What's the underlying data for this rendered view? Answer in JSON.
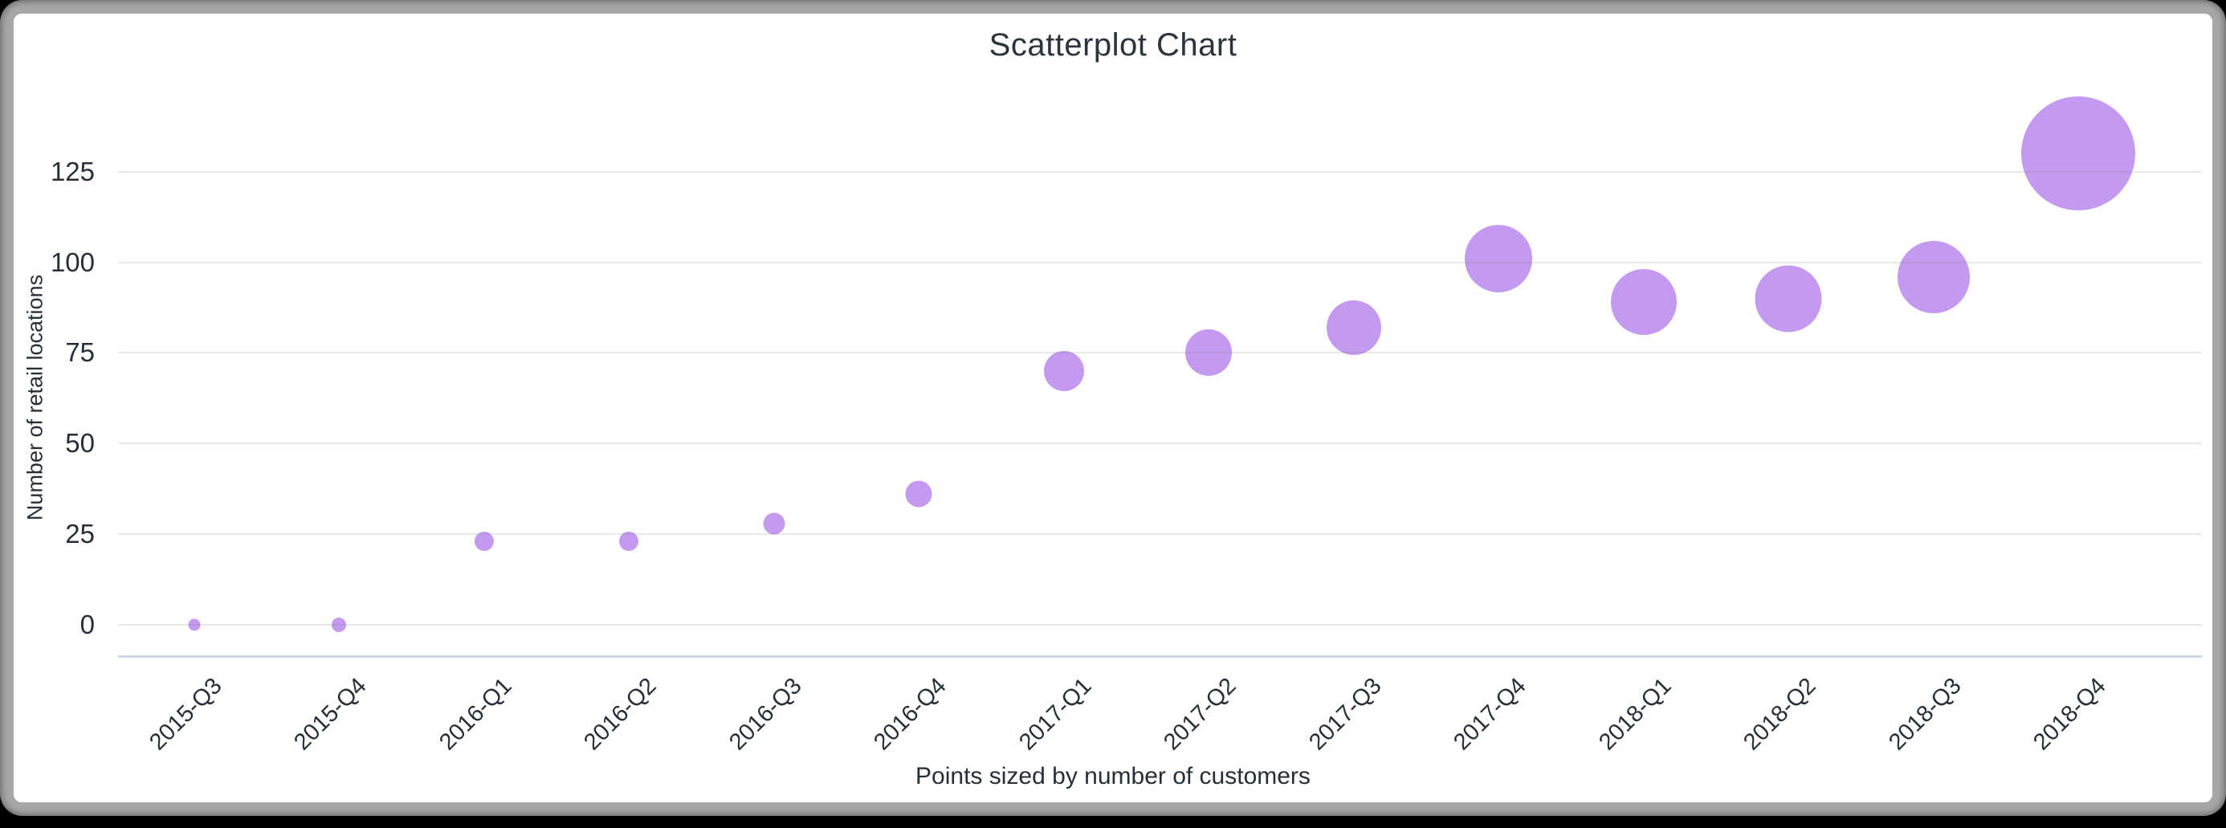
{
  "window": {
    "background_color": "#000000",
    "frame_color": "#a7a7a7",
    "card_color": "#ffffff"
  },
  "chart_data": {
    "type": "scatter",
    "title": "Scatterplot Chart",
    "subtitle": "",
    "xlabel": "",
    "ylabel": "Number of retail locations",
    "caption": "Points sized by number of customers",
    "size_encoding": "number of customers",
    "legend": "none",
    "grid": "horizontal gridlines only",
    "categories": [
      "2015-Q3",
      "2015-Q4",
      "2016-Q1",
      "2016-Q2",
      "2016-Q3",
      "2016-Q4",
      "2017-Q1",
      "2017-Q2",
      "2017-Q3",
      "2017-Q4",
      "2018-Q1",
      "2018-Q2",
      "2018-Q3",
      "2018-Q4"
    ],
    "series": [
      {
        "name": "Number of retail locations",
        "values": [
          0,
          0,
          23,
          23,
          28,
          36,
          70,
          75,
          82,
          101,
          89,
          90,
          96,
          130
        ],
        "point_radius_px": [
          7.5,
          9,
          12,
          12,
          13.5,
          16.5,
          25,
          29,
          34,
          42,
          41,
          41.5,
          45,
          71
        ]
      }
    ],
    "yticks": [
      0,
      25,
      50,
      75,
      100,
      125
    ],
    "ylim": [
      0,
      138
    ],
    "point_color": "#c49af1",
    "grid_color": "#e6e6e6",
    "axis_line_color": "#ccd6e5",
    "text_color": "#262f38"
  }
}
